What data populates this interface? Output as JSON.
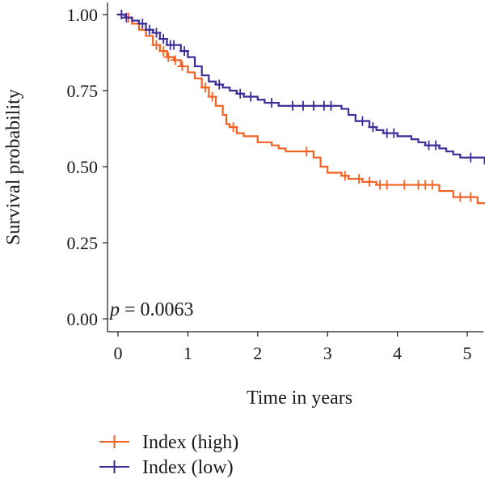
{
  "chart_data": {
    "type": "line",
    "subtype": "kaplan-meier-step",
    "xlabel": "Time in years",
    "ylabel": "Survival probability",
    "xlim": [
      -0.15,
      5.3
    ],
    "ylim": [
      -0.04,
      1.04
    ],
    "xticks": [
      0,
      1,
      2,
      3,
      4,
      5
    ],
    "xtick_labels": [
      "0",
      "1",
      "2",
      "3",
      "4",
      "5"
    ],
    "yticks": [
      0.0,
      0.25,
      0.5,
      0.75,
      1.0
    ],
    "ytick_labels": [
      "0.00",
      "0.25",
      "0.50",
      "0.75",
      "1.00"
    ],
    "grid": false,
    "legend_position": "bottom-left",
    "annotation": {
      "italic": "p",
      "rest": " = 0.0063"
    },
    "series": [
      {
        "name": "Index (high)",
        "color": "#f26122",
        "steps": [
          [
            0,
            1.0
          ],
          [
            0.1,
            0.99
          ],
          [
            0.2,
            0.97
          ],
          [
            0.3,
            0.95
          ],
          [
            0.4,
            0.93
          ],
          [
            0.5,
            0.9
          ],
          [
            0.6,
            0.88
          ],
          [
            0.7,
            0.86
          ],
          [
            0.8,
            0.85
          ],
          [
            0.9,
            0.83
          ],
          [
            1.0,
            0.81
          ],
          [
            1.1,
            0.79
          ],
          [
            1.2,
            0.76
          ],
          [
            1.3,
            0.73
          ],
          [
            1.4,
            0.7
          ],
          [
            1.5,
            0.67
          ],
          [
            1.55,
            0.64
          ],
          [
            1.6,
            0.63
          ],
          [
            1.7,
            0.61
          ],
          [
            1.8,
            0.6
          ],
          [
            2.0,
            0.58
          ],
          [
            2.2,
            0.57
          ],
          [
            2.3,
            0.56
          ],
          [
            2.4,
            0.55
          ],
          [
            2.6,
            0.55
          ],
          [
            2.8,
            0.53
          ],
          [
            2.9,
            0.5
          ],
          [
            3.0,
            0.48
          ],
          [
            3.2,
            0.47
          ],
          [
            3.3,
            0.46
          ],
          [
            3.5,
            0.45
          ],
          [
            3.7,
            0.44
          ],
          [
            4.0,
            0.44
          ],
          [
            4.6,
            0.42
          ],
          [
            4.8,
            0.4
          ],
          [
            5.0,
            0.4
          ],
          [
            5.15,
            0.38
          ],
          [
            5.3,
            0.38
          ]
        ],
        "censored": [
          [
            0.05,
            1.0
          ],
          [
            0.15,
            0.99
          ],
          [
            0.55,
            0.9
          ],
          [
            0.65,
            0.88
          ],
          [
            0.72,
            0.86
          ],
          [
            0.82,
            0.85
          ],
          [
            0.92,
            0.83
          ],
          [
            1.25,
            0.74
          ],
          [
            1.35,
            0.72
          ],
          [
            1.65,
            0.62
          ],
          [
            2.7,
            0.55
          ],
          [
            3.25,
            0.47
          ],
          [
            3.45,
            0.46
          ],
          [
            3.6,
            0.45
          ],
          [
            3.75,
            0.44
          ],
          [
            3.85,
            0.44
          ],
          [
            4.1,
            0.44
          ],
          [
            4.3,
            0.44
          ],
          [
            4.4,
            0.44
          ],
          [
            4.5,
            0.44
          ],
          [
            4.9,
            0.4
          ],
          [
            5.05,
            0.4
          ]
        ]
      },
      {
        "name": "Index (low)",
        "color": "#3a2d98",
        "steps": [
          [
            0,
            1.0
          ],
          [
            0.1,
            0.99
          ],
          [
            0.2,
            0.98
          ],
          [
            0.3,
            0.97
          ],
          [
            0.4,
            0.95
          ],
          [
            0.5,
            0.94
          ],
          [
            0.6,
            0.92
          ],
          [
            0.7,
            0.9
          ],
          [
            0.9,
            0.88
          ],
          [
            1.0,
            0.86
          ],
          [
            1.1,
            0.83
          ],
          [
            1.2,
            0.8
          ],
          [
            1.3,
            0.78
          ],
          [
            1.4,
            0.77
          ],
          [
            1.5,
            0.76
          ],
          [
            1.6,
            0.75
          ],
          [
            1.7,
            0.74
          ],
          [
            1.8,
            0.73
          ],
          [
            2.0,
            0.72
          ],
          [
            2.1,
            0.71
          ],
          [
            2.3,
            0.7
          ],
          [
            3.2,
            0.69
          ],
          [
            3.3,
            0.67
          ],
          [
            3.4,
            0.65
          ],
          [
            3.6,
            0.63
          ],
          [
            3.7,
            0.62
          ],
          [
            3.8,
            0.61
          ],
          [
            4.0,
            0.6
          ],
          [
            4.2,
            0.59
          ],
          [
            4.3,
            0.58
          ],
          [
            4.4,
            0.57
          ],
          [
            4.6,
            0.56
          ],
          [
            4.7,
            0.55
          ],
          [
            4.8,
            0.54
          ],
          [
            4.9,
            0.53
          ],
          [
            5.0,
            0.53
          ],
          [
            5.2,
            0.53
          ],
          [
            5.25,
            0.51
          ],
          [
            5.3,
            0.51
          ]
        ],
        "censored": [
          [
            0.05,
            1.0
          ],
          [
            0.12,
            0.99
          ],
          [
            0.35,
            0.97
          ],
          [
            0.45,
            0.95
          ],
          [
            0.55,
            0.94
          ],
          [
            0.65,
            0.92
          ],
          [
            0.75,
            0.9
          ],
          [
            0.8,
            0.9
          ],
          [
            0.95,
            0.88
          ],
          [
            1.45,
            0.77
          ],
          [
            1.75,
            0.74
          ],
          [
            1.9,
            0.73
          ],
          [
            2.2,
            0.71
          ],
          [
            2.5,
            0.7
          ],
          [
            2.65,
            0.7
          ],
          [
            2.8,
            0.7
          ],
          [
            2.95,
            0.7
          ],
          [
            3.05,
            0.7
          ],
          [
            3.5,
            0.65
          ],
          [
            3.65,
            0.63
          ],
          [
            3.85,
            0.61
          ],
          [
            3.95,
            0.61
          ],
          [
            4.45,
            0.57
          ],
          [
            4.55,
            0.57
          ],
          [
            5.05,
            0.53
          ]
        ]
      }
    ]
  }
}
